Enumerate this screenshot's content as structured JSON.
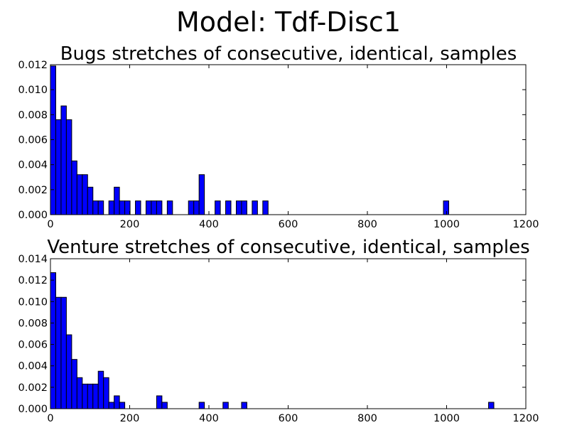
{
  "figure_title": "Model: Tdf-Disc1",
  "colors": {
    "bar": "#0000ff",
    "edge": "#000000"
  },
  "chart_data": [
    {
      "type": "bar",
      "title": "Bugs stretches of consecutive, identical, samples",
      "xlabel": "",
      "ylabel": "",
      "xlim": [
        0,
        1200
      ],
      "ylim": [
        0,
        0.012
      ],
      "xticks": [
        0,
        200,
        400,
        600,
        800,
        1000,
        1200
      ],
      "xtick_labels": [
        "0",
        "200",
        "400",
        "600",
        "800",
        "1000",
        "1200"
      ],
      "yticks": [
        0,
        0.002,
        0.004,
        0.006,
        0.008,
        0.01,
        0.012
      ],
      "ytick_labels": [
        "0.000",
        "0.002",
        "0.004",
        "0.006",
        "0.008",
        "0.010",
        "0.012"
      ],
      "bin_width": 13.4,
      "bins": [
        {
          "x": 0,
          "value": 0.0119
        },
        {
          "x": 13.4,
          "value": 0.0076
        },
        {
          "x": 26.8,
          "value": 0.0087
        },
        {
          "x": 40.2,
          "value": 0.0076
        },
        {
          "x": 53.6,
          "value": 0.0043
        },
        {
          "x": 67.0,
          "value": 0.0032
        },
        {
          "x": 80.4,
          "value": 0.0032
        },
        {
          "x": 93.8,
          "value": 0.0022
        },
        {
          "x": 107.2,
          "value": 0.0011
        },
        {
          "x": 120.6,
          "value": 0.0011
        },
        {
          "x": 147.4,
          "value": 0.0011
        },
        {
          "x": 160.8,
          "value": 0.0022
        },
        {
          "x": 174.2,
          "value": 0.0011
        },
        {
          "x": 187.6,
          "value": 0.0011
        },
        {
          "x": 214.4,
          "value": 0.0011
        },
        {
          "x": 241.2,
          "value": 0.0011
        },
        {
          "x": 254.6,
          "value": 0.0011
        },
        {
          "x": 268.0,
          "value": 0.0011
        },
        {
          "x": 294.8,
          "value": 0.0011
        },
        {
          "x": 348.4,
          "value": 0.0011
        },
        {
          "x": 361.8,
          "value": 0.0011
        },
        {
          "x": 375.2,
          "value": 0.0032
        },
        {
          "x": 415.4,
          "value": 0.0011
        },
        {
          "x": 442.2,
          "value": 0.0011
        },
        {
          "x": 469.0,
          "value": 0.0011
        },
        {
          "x": 482.4,
          "value": 0.0011
        },
        {
          "x": 509.2,
          "value": 0.0011
        },
        {
          "x": 536.0,
          "value": 0.0011
        },
        {
          "x": 992.0,
          "value": 0.0011
        }
      ]
    },
    {
      "type": "bar",
      "title": "Venture stretches of consecutive, identical, samples",
      "xlabel": "",
      "ylabel": "",
      "xlim": [
        0,
        1200
      ],
      "ylim": [
        0,
        0.014
      ],
      "xticks": [
        0,
        200,
        400,
        600,
        800,
        1000,
        1200
      ],
      "xtick_labels": [
        "0",
        "200",
        "400",
        "600",
        "800",
        "1000",
        "1200"
      ],
      "yticks": [
        0,
        0.002,
        0.004,
        0.006,
        0.008,
        0.01,
        0.012,
        0.014
      ],
      "ytick_labels": [
        "0.000",
        "0.002",
        "0.004",
        "0.006",
        "0.008",
        "0.010",
        "0.012",
        "0.014"
      ],
      "bin_width": 13.4,
      "bins": [
        {
          "x": 0,
          "value": 0.0127
        },
        {
          "x": 13.4,
          "value": 0.0104
        },
        {
          "x": 26.8,
          "value": 0.0104
        },
        {
          "x": 40.2,
          "value": 0.0069
        },
        {
          "x": 53.6,
          "value": 0.0046
        },
        {
          "x": 67.0,
          "value": 0.0029
        },
        {
          "x": 80.4,
          "value": 0.0023
        },
        {
          "x": 93.8,
          "value": 0.0023
        },
        {
          "x": 107.2,
          "value": 0.0023
        },
        {
          "x": 120.6,
          "value": 0.0035
        },
        {
          "x": 134.0,
          "value": 0.0029
        },
        {
          "x": 147.4,
          "value": 0.0006
        },
        {
          "x": 160.8,
          "value": 0.0012
        },
        {
          "x": 174.2,
          "value": 0.0006
        },
        {
          "x": 268.0,
          "value": 0.0012
        },
        {
          "x": 281.4,
          "value": 0.0006
        },
        {
          "x": 375.2,
          "value": 0.0006
        },
        {
          "x": 435.5,
          "value": 0.0006
        },
        {
          "x": 482.4,
          "value": 0.0006
        },
        {
          "x": 1105.9,
          "value": 0.0006
        }
      ]
    }
  ]
}
